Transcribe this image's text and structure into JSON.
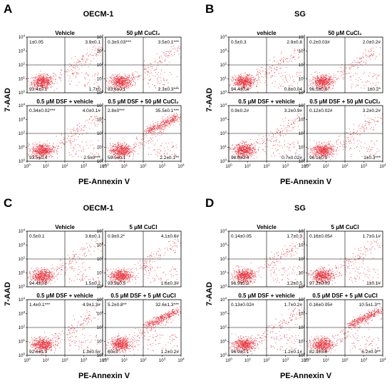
{
  "panels": [
    {
      "letter": "A",
      "title": "OECM-1",
      "ylabel": "7-AAD",
      "xlabel": "PE-Annexin V",
      "subplots": [
        {
          "title": "Vehicle",
          "ul": "1±0.05",
          "ur": "3.9±0.1",
          "ll": "93.4±0.1",
          "lr": "1.7±0"
        },
        {
          "title": "50 μM CuCl₂",
          "ul": "0.3±0.03***",
          "ur": "3.5±0.1***",
          "ll": "93.6±0.1",
          "lr": "2.3±0.3***"
        },
        {
          "title": "0.5 μM DSF + vehicle",
          "ul": "0.34±0.02***",
          "ur": "4.0±0.1#",
          "ll": "93.5±0.4",
          "lr": "2.5±0***"
        },
        {
          "title": "0.5 μM DSF + 50 μM CuCl₂",
          "ul": "2.8±0***",
          "ur": "35.5±0.1***",
          "ll": "59.5±0.1",
          "lr": "2.2±0.1**"
        }
      ]
    },
    {
      "letter": "B",
      "title": "SG",
      "ylabel": "7-AAD",
      "xlabel": "PE-Annexin V",
      "subplots": [
        {
          "title": "vehicle",
          "ul": "0.5±0.3",
          "ur": "2.9±0.8",
          "ll": "94.4±0.4",
          "lr": "0.8±0.04"
        },
        {
          "title": "50 μM CuCl₂",
          "ul": "0.2±0.03#",
          "ur": "2.0±0.2#",
          "ll": "96.5±0.8",
          "lr": "1±0.2*"
        },
        {
          "title": "0.5 μM DSF + vehicle",
          "ul": "0.9±0.2#",
          "ur": "3.2±0.9#",
          "ll": "96.6±0.4",
          "lr": "0.7±0.02#"
        },
        {
          "title": "0.5 μM DSF + 50 μM CuCl₂",
          "ul": "0.12±0.02#",
          "ur": "3.2±0.2#",
          "ll": "96.1±0.9",
          "lr": "1±0.3***"
        }
      ]
    },
    {
      "letter": "C",
      "title": "OECM-1",
      "ylabel": "7-AAD",
      "xlabel": "PE-Annexin V",
      "subplots": [
        {
          "title": "Vehicle",
          "ul": "0.5±0.1",
          "ur": "3.6±0.1",
          "ll": "94.4±0.2",
          "lr": "1.5±0.2"
        },
        {
          "title": "5 μM CuCl",
          "ul": "0.9±0.2*",
          "ur": "4.1±0.6#",
          "ll": "93.5±0.5",
          "lr": "1.6±0.3#"
        },
        {
          "title": "0.5 μM DSF + vehicle",
          "ul": "1.4±0.1***",
          "ur": "4.9±1.3#",
          "ll": "92.6±1.9",
          "lr": "1.3±0.5#"
        },
        {
          "title": "0.5 μM DSF + 5 μM CuCl",
          "ul": "5.2±0.8**",
          "ur": "32.6±1.3***",
          "ll": "60±3",
          "lr": "1.2±0.2#"
        }
      ]
    },
    {
      "letter": "D",
      "title": "SG",
      "ylabel": "7-AAD",
      "xlabel": "PE-Annexin V",
      "subplots": [
        {
          "title": "Vehicle",
          "ul": "0.14±0.05",
          "ur": "1.7±0.3",
          "ll": "96.9±0.2",
          "lr": "1.2±0.5"
        },
        {
          "title": "5 μM CuCl",
          "ul": "0.16±0.05#",
          "ur": "1.7±0.1#",
          "ll": "97.2±0.03",
          "lr": "1±0.1#"
        },
        {
          "title": "0.5 μM DSF + vehicle",
          "ul": "0.13±0.02#",
          "ur": "1.7±0.2#",
          "ll": "96.9±0.1",
          "lr": "1.2±0.1#"
        },
        {
          "title": "0.5 μM DSF + 5 μM CuCl",
          "ul": "0.16±0.05#",
          "ur": "10.5±1.3**",
          "ll": "82.9±5.8",
          "lr": "6.2±0.9**"
        }
      ]
    }
  ],
  "axis_ticks": [
    "10⁰",
    "10¹",
    "10²",
    "10³",
    "10⁴"
  ],
  "colors": {
    "dots": "#e8212b",
    "axis": "#000000"
  },
  "chart_data": {
    "type": "scatter",
    "description_type": "flow cytometry quadrant dot plots",
    "xlabel": "PE-Annexin V",
    "ylabel": "7-AAD",
    "xscale": "log",
    "yscale": "log",
    "xlim": [
      1,
      10000
    ],
    "ylim": [
      1,
      10000
    ],
    "quadrant_units": "% of cells",
    "panels": [
      "A",
      "B",
      "C",
      "D"
    ]
  }
}
